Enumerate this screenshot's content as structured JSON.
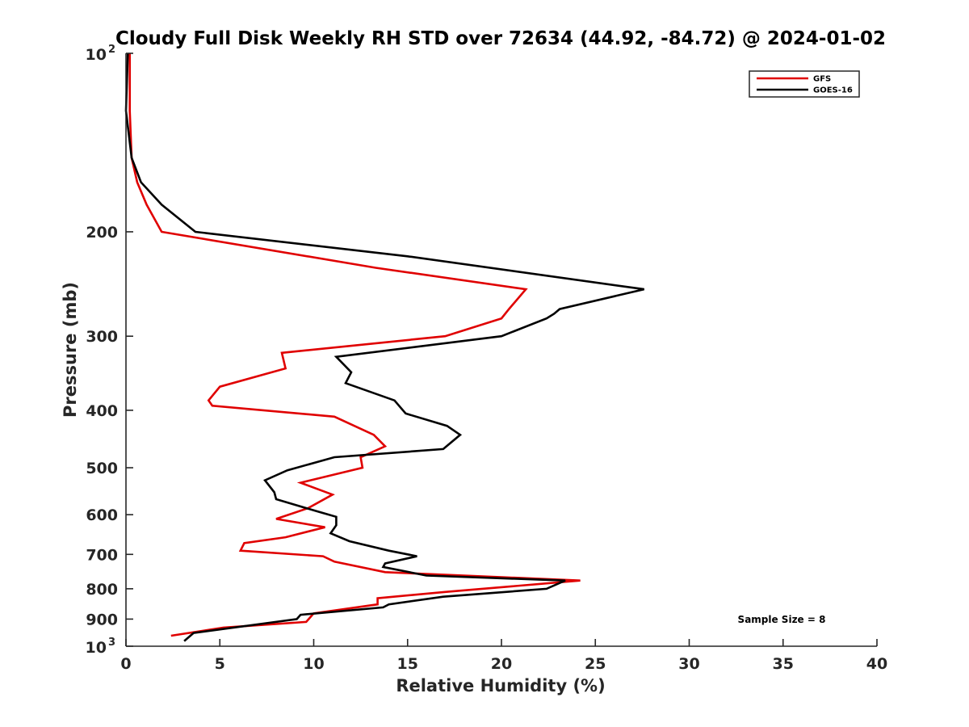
{
  "chart_data": {
    "type": "line",
    "title": "Cloudy Full Disk Weekly RH STD over 72634 (44.92, -84.72) @ 2024-01-02",
    "xlabel": "Relative Humidity (%)",
    "ylabel": "Pressure (mb)",
    "xlim": [
      0,
      40
    ],
    "ylim": [
      100,
      1000
    ],
    "y_scale": "log",
    "y_reversed": true,
    "x_ticks": [
      "0",
      "5",
      "10",
      "15",
      "20",
      "25",
      "30",
      "35",
      "40"
    ],
    "y_ticks": [
      {
        "value": 100,
        "base": "10",
        "exp": "2"
      },
      {
        "value": 200,
        "label": "200"
      },
      {
        "value": 300,
        "label": "300"
      },
      {
        "value": 400,
        "label": "400"
      },
      {
        "value": 500,
        "label": "500"
      },
      {
        "value": 600,
        "label": "600"
      },
      {
        "value": 700,
        "label": "700"
      },
      {
        "value": 800,
        "label": "800"
      },
      {
        "value": 900,
        "label": "900"
      },
      {
        "value": 1000,
        "base": "10",
        "exp": "3"
      }
    ],
    "grid": false,
    "legend_position": "top-right",
    "note": "Sample Size = 8",
    "series": [
      {
        "name": "GFS",
        "color": "#e00000",
        "points": [
          [
            0.2,
            100
          ],
          [
            0.2,
            125
          ],
          [
            0.3,
            150
          ],
          [
            0.6,
            165
          ],
          [
            1.1,
            180
          ],
          [
            1.9,
            200
          ],
          [
            13.3,
            230
          ],
          [
            21.3,
            250
          ],
          [
            20.4,
            270
          ],
          [
            20.0,
            280
          ],
          [
            17,
            300
          ],
          [
            8.3,
            320
          ],
          [
            8.5,
            340
          ],
          [
            5.0,
            365
          ],
          [
            4.4,
            385
          ],
          [
            4.6,
            393
          ],
          [
            11.1,
            410
          ],
          [
            13.2,
            440
          ],
          [
            13.8,
            460
          ],
          [
            12.5,
            480
          ],
          [
            12.6,
            500
          ],
          [
            9.3,
            530
          ],
          [
            11.0,
            555
          ],
          [
            9.7,
            585
          ],
          [
            8.0,
            610
          ],
          [
            10.6,
            630
          ],
          [
            8.5,
            655
          ],
          [
            6.3,
            670
          ],
          [
            6.1,
            690
          ],
          [
            10.5,
            705
          ],
          [
            11.1,
            720
          ],
          [
            13.8,
            750
          ],
          [
            24.2,
            775
          ],
          [
            17.0,
            810
          ],
          [
            13.4,
            830
          ],
          [
            13.4,
            850
          ],
          [
            10.0,
            880
          ],
          [
            9.6,
            910
          ],
          [
            5.2,
            930
          ],
          [
            2.4,
            960
          ]
        ]
      },
      {
        "name": "GOES-16",
        "color": "#000000",
        "points": [
          [
            0.1,
            100
          ],
          [
            0.0,
            125
          ],
          [
            0.3,
            150
          ],
          [
            0.8,
            165
          ],
          [
            1.9,
            180
          ],
          [
            3.7,
            200
          ],
          [
            15.0,
            220
          ],
          [
            27.6,
            250
          ],
          [
            23.1,
            270
          ],
          [
            22.8,
            275
          ],
          [
            22.4,
            280
          ],
          [
            20.0,
            300
          ],
          [
            11.2,
            325
          ],
          [
            12.0,
            345
          ],
          [
            11.7,
            360
          ],
          [
            14.3,
            385
          ],
          [
            14.9,
            405
          ],
          [
            17.1,
            425
          ],
          [
            17.8,
            440
          ],
          [
            16.9,
            465
          ],
          [
            11.1,
            480
          ],
          [
            8.6,
            505
          ],
          [
            7.4,
            525
          ],
          [
            7.9,
            550
          ],
          [
            8.0,
            565
          ],
          [
            10.0,
            590
          ],
          [
            11.2,
            605
          ],
          [
            11.2,
            625
          ],
          [
            10.9,
            645
          ],
          [
            11.9,
            665
          ],
          [
            14.0,
            690
          ],
          [
            15.5,
            705
          ],
          [
            13.8,
            725
          ],
          [
            13.7,
            735
          ],
          [
            16.0,
            760
          ],
          [
            23.4,
            775
          ],
          [
            22.4,
            800
          ],
          [
            16.9,
            825
          ],
          [
            14.0,
            850
          ],
          [
            13.7,
            860
          ],
          [
            9.3,
            885
          ],
          [
            9.1,
            900
          ],
          [
            3.6,
            950
          ],
          [
            3.1,
            980
          ]
        ]
      }
    ]
  }
}
